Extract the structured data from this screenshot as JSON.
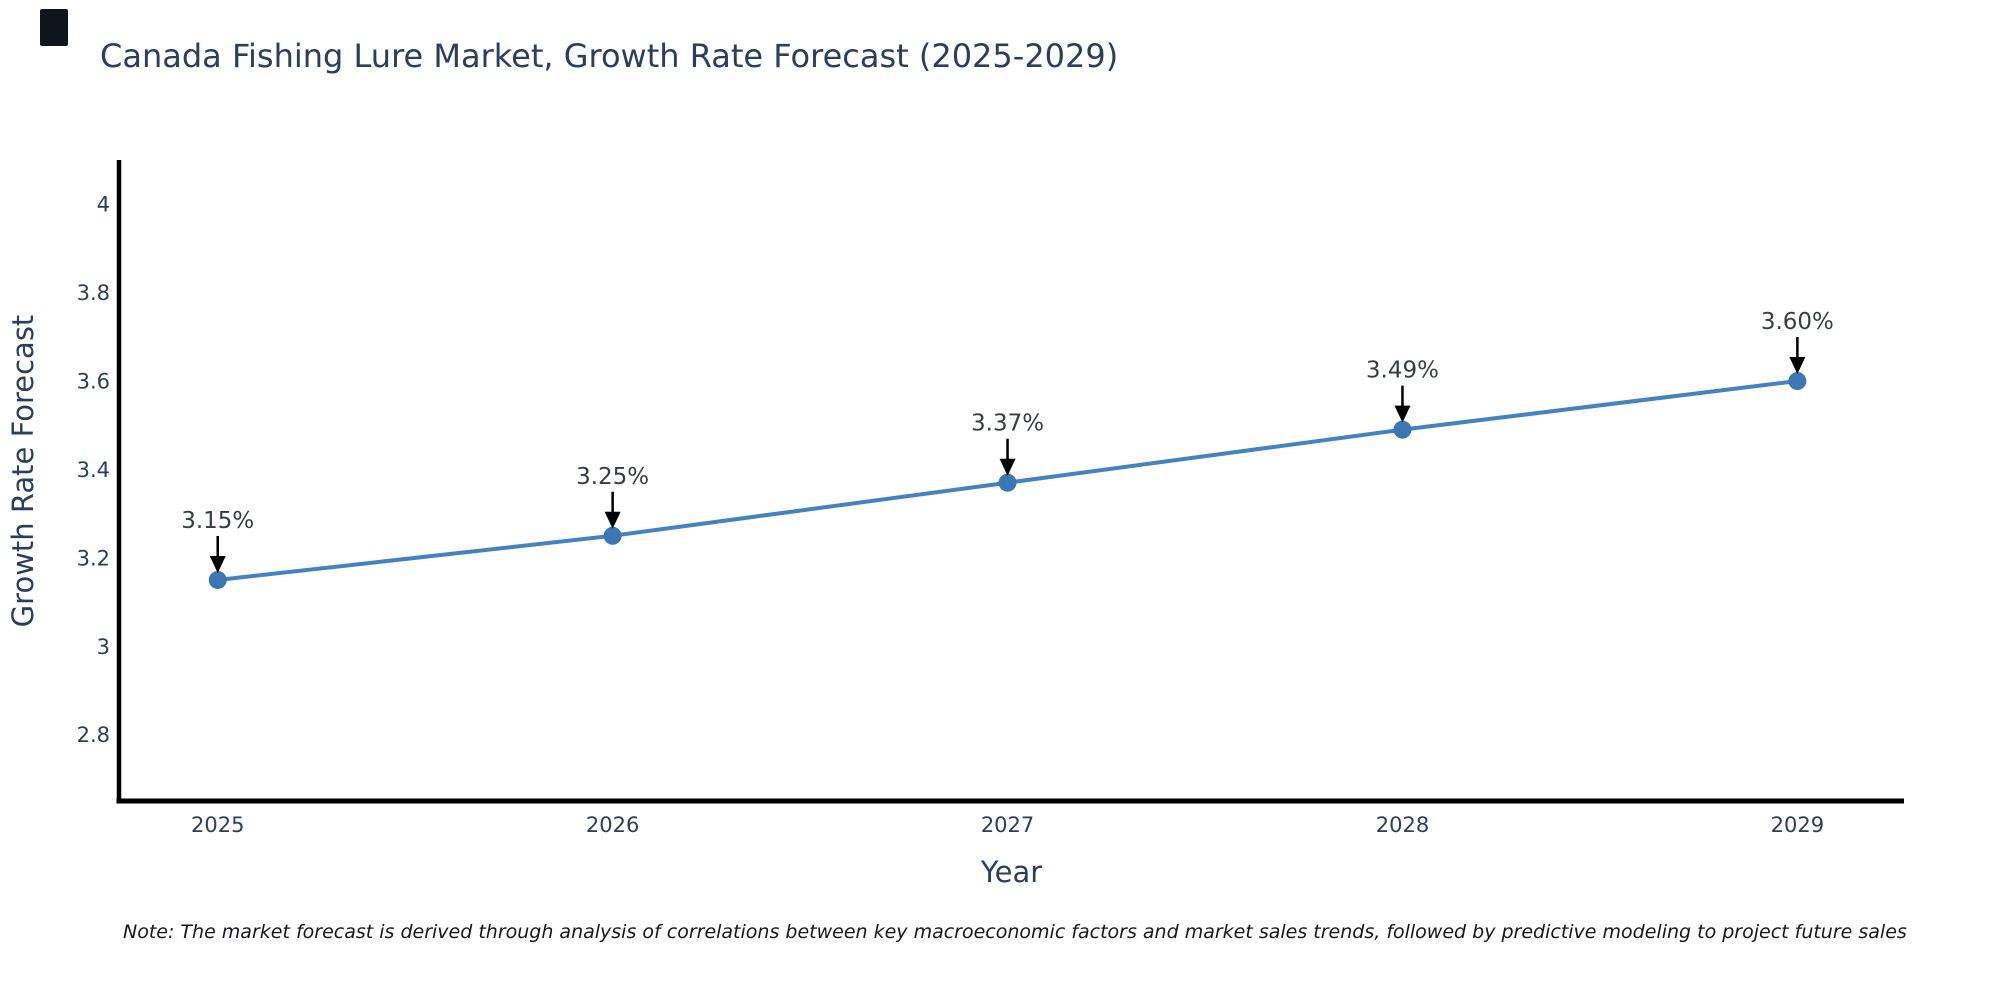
{
  "header": {
    "title": "Canada Fishing Lure Market, Growth Rate Forecast (2025-2029)"
  },
  "footnote": {
    "text": "Note: The market forecast is derived through analysis of correlations between key macroeconomic factors and market sales trends, followed by predictive modeling to project future sales"
  },
  "decorations": {
    "cursor_block_color": "#10141c"
  },
  "chart_data": {
    "type": "line",
    "title": "Canada Fishing Lure Market, Growth Rate Forecast (2025-2029)",
    "xlabel": "Year",
    "ylabel": "Growth Rate Forecast",
    "x": [
      2025,
      2026,
      2027,
      2028,
      2029
    ],
    "y": [
      3.15,
      3.25,
      3.37,
      3.49,
      3.6
    ],
    "point_labels": [
      "3.15%",
      "3.25%",
      "3.37%",
      "3.49%",
      "3.60%"
    ],
    "xtick_labels": [
      "2025",
      "2026",
      "2027",
      "2028",
      "2029"
    ],
    "ytick_values": [
      4,
      3.8,
      3.6,
      3.4,
      3.2,
      3,
      2.8
    ],
    "ytick_labels": [
      "4",
      "3.8",
      "3.6",
      "3.4",
      "3.2",
      "3",
      "2.8"
    ],
    "xlim": [
      2024.75,
      2029.27
    ],
    "ylim": [
      2.65,
      4.1
    ],
    "grid": false,
    "legend": false,
    "line_color": "#4383c2",
    "marker_color": "#3a77b4",
    "axis_line_color": "#000000",
    "tick_text_color": "#2a3f5f",
    "axis_title_color": "#2a3f5f",
    "annotation_text_color": "#383d45",
    "annotation_arrow_color": "#000000"
  }
}
